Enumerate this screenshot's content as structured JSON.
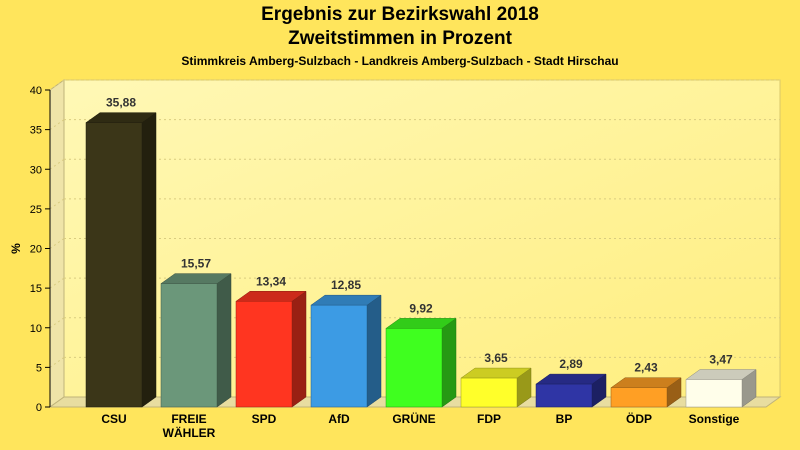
{
  "header": {
    "title": "Ergebnis zur Bezirkswahl 2018",
    "subtitle": "Zweitstimmen in Prozent",
    "subtitle2": "Stimmkreis Amberg-Sulzbach - Landkreis Amberg-Sulzbach - Stadt Hirschau"
  },
  "chart_data": {
    "type": "bar",
    "title": "Ergebnis zur Bezirkswahl 2018",
    "subtitle": "Zweitstimmen in Prozent",
    "xlabel": "",
    "ylabel": "%",
    "ylim": [
      0,
      40
    ],
    "yticks": [
      0,
      5,
      10,
      15,
      20,
      25,
      30,
      35,
      40
    ],
    "grid": true,
    "legend": "none",
    "categories": [
      [
        "CSU"
      ],
      [
        "FREIE",
        "WÄHLER"
      ],
      [
        "SPD"
      ],
      [
        "AfD"
      ],
      [
        "GRÜNE"
      ],
      [
        "FDP"
      ],
      [
        "BP"
      ],
      [
        "ÖDP"
      ],
      [
        "Sonstige"
      ]
    ],
    "values": [
      35.88,
      15.57,
      13.34,
      12.85,
      9.92,
      3.65,
      2.89,
      2.43,
      3.47
    ],
    "value_labels": [
      "35,88",
      "15,57",
      "13,34",
      "12,85",
      "9,92",
      "3,65",
      "2,89",
      "2,43",
      "3,47"
    ],
    "colors": [
      "#3B3618",
      "#6B977A",
      "#FF3520",
      "#3C9BE4",
      "#3FFF1F",
      "#FFFF2A",
      "#2F35A5",
      "#FF9F24",
      "#FFFEEA"
    ]
  }
}
